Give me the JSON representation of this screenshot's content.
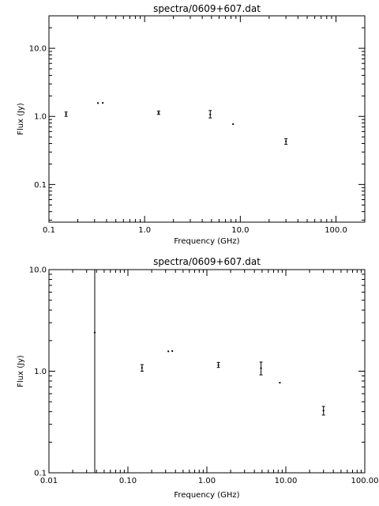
{
  "chart_data": [
    {
      "type": "scatter",
      "title": "spectra/0609+607.dat",
      "xlabel": "Frequency (GHz)",
      "ylabel": "Flux (Jy)",
      "x_scale": "log",
      "y_scale": "log",
      "xlim": [
        0.1,
        200
      ],
      "ylim": [
        0.028,
        30
      ],
      "grid": false,
      "x_ticks": [
        {
          "value": 0.1,
          "label": "0.1"
        },
        {
          "value": 1,
          "label": "1.0"
        },
        {
          "value": 10,
          "label": "10.0"
        },
        {
          "value": 100,
          "label": "100.0"
        }
      ],
      "y_ticks": [
        {
          "value": 0.1,
          "label": "0.1"
        },
        {
          "value": 1,
          "label": "1.0"
        },
        {
          "value": 10,
          "label": "10.0"
        }
      ],
      "points": [
        {
          "x": 0.151,
          "y": 1.08,
          "ylo": 1.0,
          "yhi": 1.16
        },
        {
          "x": 0.325,
          "y": 1.57,
          "ylo": 1.55,
          "yhi": 1.59
        },
        {
          "x": 0.365,
          "y": 1.58,
          "ylo": 1.56,
          "yhi": 1.6
        },
        {
          "x": 1.4,
          "y": 1.13,
          "ylo": 1.07,
          "yhi": 1.2
        },
        {
          "x": 4.85,
          "y": 1.07,
          "ylo": 0.95,
          "yhi": 1.22
        },
        {
          "x": 8.4,
          "y": 0.77,
          "ylo": 0.76,
          "yhi": 0.78
        },
        {
          "x": 30,
          "y": 0.43,
          "ylo": 0.39,
          "yhi": 0.47
        }
      ]
    },
    {
      "type": "scatter",
      "title": "spectra/0609+607.dat",
      "xlabel": "Frequency (GHz)",
      "ylabel": "Flux (Jy)",
      "x_scale": "log",
      "y_scale": "log",
      "xlim": [
        0.01,
        100
      ],
      "ylim": [
        0.1,
        10
      ],
      "grid": false,
      "x_ticks": [
        {
          "value": 0.01,
          "label": "0.01"
        },
        {
          "value": 0.1,
          "label": "0.10"
        },
        {
          "value": 1,
          "label": "1.00"
        },
        {
          "value": 10,
          "label": "10.00"
        },
        {
          "value": 100,
          "label": "100.00"
        }
      ],
      "y_ticks": [
        {
          "value": 0.1,
          "label": "0.1"
        },
        {
          "value": 1,
          "label": "1.0"
        },
        {
          "value": 10,
          "label": "10.0"
        }
      ],
      "points": [
        {
          "x": 0.038,
          "y": 2.4,
          "ylo": 0.1,
          "yhi": 10
        },
        {
          "x": 0.151,
          "y": 1.08,
          "ylo": 1.0,
          "yhi": 1.16
        },
        {
          "x": 0.325,
          "y": 1.57,
          "ylo": 1.55,
          "yhi": 1.59
        },
        {
          "x": 0.365,
          "y": 1.58,
          "ylo": 1.56,
          "yhi": 1.6
        },
        {
          "x": 1.4,
          "y": 1.15,
          "ylo": 1.09,
          "yhi": 1.22
        },
        {
          "x": 4.85,
          "y": 1.07,
          "ylo": 0.92,
          "yhi": 1.23
        },
        {
          "x": 8.4,
          "y": 0.77,
          "ylo": 0.76,
          "yhi": 0.78
        },
        {
          "x": 30,
          "y": 0.41,
          "ylo": 0.37,
          "yhi": 0.45
        }
      ]
    }
  ]
}
